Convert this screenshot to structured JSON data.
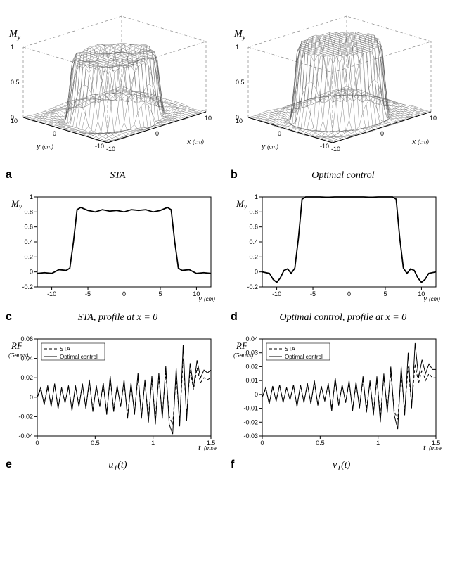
{
  "colors": {
    "background": "#ffffff",
    "line": "#000000",
    "grid": "#999999",
    "mesh": "#555555"
  },
  "fonts": {
    "title_family": "Times New Roman",
    "title_size_pt": 14,
    "letter_size_pt": 16,
    "axis_size_pt": 12,
    "tick_size_pt": 9
  },
  "panel_a": {
    "letter": "a",
    "title": "STA",
    "zlabel": "M",
    "zlabel_sub": "y",
    "xlabel": "y",
    "xunit": "(cm)",
    "ylabel": "x",
    "yunit": "(cm)",
    "range": [
      -10,
      10
    ],
    "zrange": [
      0,
      1
    ],
    "zticks": [
      0,
      0.5,
      1
    ],
    "plateau": 0.82,
    "radius": 7
  },
  "panel_b": {
    "letter": "b",
    "title": "Optimal control",
    "zlabel": "M",
    "zlabel_sub": "y",
    "xlabel": "y",
    "xunit": "(cm)",
    "ylabel": "x",
    "yunit": "(cm)",
    "range": [
      -10,
      10
    ],
    "zrange": [
      0,
      1
    ],
    "zticks": [
      0,
      0.5,
      1
    ],
    "plateau": 1.0,
    "radius": 7
  },
  "panel_c": {
    "letter": "c",
    "title": "STA, profile at x = 0",
    "ylabel": "M",
    "ylabel_sub": "y",
    "xlabel": "y",
    "xunit": "(cm)",
    "xlim": [
      -12,
      12
    ],
    "ylim": [
      -0.2,
      1
    ],
    "xticks": [
      -10,
      -5,
      0,
      5,
      10
    ],
    "yticks": [
      -0.2,
      0,
      0.2,
      0.4,
      0.6,
      0.8,
      1
    ],
    "x": [
      -12,
      -11,
      -10,
      -9,
      -8,
      -7.5,
      -7,
      -6.5,
      -6,
      -5,
      -4,
      -3,
      -2,
      -1,
      0,
      1,
      2,
      3,
      4,
      5,
      6,
      6.5,
      7,
      7.5,
      8,
      9,
      10,
      11,
      12
    ],
    "y": [
      -0.02,
      -0.01,
      -0.02,
      0.03,
      0.02,
      0.05,
      0.4,
      0.83,
      0.86,
      0.82,
      0.8,
      0.83,
      0.81,
      0.82,
      0.8,
      0.83,
      0.82,
      0.83,
      0.8,
      0.82,
      0.86,
      0.83,
      0.4,
      0.05,
      0.02,
      0.03,
      -0.02,
      -0.01,
      -0.02
    ],
    "line_color": "#000000",
    "line_width": 1.8
  },
  "panel_d": {
    "letter": "d",
    "title": "Optimal control, profile at x = 0",
    "ylabel": "M",
    "ylabel_sub": "y",
    "xlabel": "y",
    "xunit": "(cm)",
    "xlim": [
      -12,
      12
    ],
    "ylim": [
      -0.2,
      1
    ],
    "xticks": [
      -10,
      -5,
      0,
      5,
      10
    ],
    "yticks": [
      -0.2,
      0,
      0.2,
      0.4,
      0.6,
      0.8,
      1
    ],
    "x": [
      -12,
      -11,
      -10.5,
      -10,
      -9.5,
      -9,
      -8.5,
      -8,
      -7.5,
      -7,
      -6.5,
      -6,
      -5,
      -4,
      -3,
      -2,
      -1,
      0,
      1,
      2,
      3,
      4,
      5,
      6,
      6.5,
      7,
      7.5,
      8,
      8.5,
      9,
      9.5,
      10,
      10.5,
      11,
      12
    ],
    "y": [
      0.0,
      -0.02,
      -0.1,
      -0.14,
      -0.08,
      0.02,
      0.04,
      -0.02,
      0.05,
      0.45,
      0.97,
      1.0,
      1.0,
      1.0,
      0.995,
      1.0,
      1.0,
      1.0,
      1.0,
      1.0,
      0.995,
      1.0,
      1.0,
      1.0,
      0.97,
      0.45,
      0.05,
      -0.02,
      0.04,
      0.02,
      -0.08,
      -0.14,
      -0.1,
      -0.02,
      0.0
    ],
    "line_color": "#000000",
    "line_width": 1.8
  },
  "panel_e": {
    "letter": "e",
    "title": "u₁(t)",
    "ylabel": "RF",
    "yunit": "(Gauss)",
    "xlabel": "t",
    "xunit": "(msec)",
    "xlim": [
      0,
      1.5
    ],
    "ylim": [
      -0.04,
      0.06
    ],
    "xticks": [
      0,
      0.5,
      1,
      1.5
    ],
    "yticks": [
      -0.04,
      -0.02,
      0,
      0.02,
      0.04,
      0.06
    ],
    "legend": [
      "STA",
      "Optimal control"
    ],
    "legend_styles": [
      "dashed",
      "solid"
    ],
    "series": [
      {
        "name": "STA",
        "dash": "4,3",
        "color": "#000000",
        "width": 1.0,
        "t": [
          0,
          0.03,
          0.06,
          0.09,
          0.12,
          0.15,
          0.18,
          0.21,
          0.24,
          0.27,
          0.3,
          0.33,
          0.36,
          0.39,
          0.42,
          0.45,
          0.48,
          0.51,
          0.54,
          0.57,
          0.6,
          0.63,
          0.66,
          0.69,
          0.72,
          0.75,
          0.78,
          0.81,
          0.84,
          0.87,
          0.9,
          0.93,
          0.96,
          0.99,
          1.02,
          1.05,
          1.08,
          1.11,
          1.14,
          1.17,
          1.2,
          1.23,
          1.26,
          1.29,
          1.32,
          1.35,
          1.38,
          1.41,
          1.44,
          1.47,
          1.5
        ],
        "y": [
          0,
          0.008,
          -0.006,
          0.01,
          -0.008,
          0.012,
          -0.01,
          0.008,
          -0.005,
          0.01,
          -0.012,
          0.01,
          -0.008,
          0.012,
          -0.01,
          0.015,
          -0.012,
          0.01,
          -0.008,
          0.012,
          -0.015,
          0.018,
          -0.012,
          0.01,
          -0.008,
          0.015,
          -0.018,
          0.012,
          -0.015,
          0.02,
          -0.018,
          0.015,
          -0.02,
          0.018,
          -0.022,
          0.02,
          -0.018,
          0.025,
          -0.02,
          -0.028,
          0.022,
          -0.025,
          0.04,
          -0.018,
          0.028,
          0.008,
          0.03,
          0.015,
          0.02,
          0.018,
          0.02
        ]
      },
      {
        "name": "Optimal control",
        "dash": "none",
        "color": "#000000",
        "width": 1.0,
        "t": [
          0,
          0.03,
          0.06,
          0.09,
          0.12,
          0.15,
          0.18,
          0.21,
          0.24,
          0.27,
          0.3,
          0.33,
          0.36,
          0.39,
          0.42,
          0.45,
          0.48,
          0.51,
          0.54,
          0.57,
          0.6,
          0.63,
          0.66,
          0.69,
          0.72,
          0.75,
          0.78,
          0.81,
          0.84,
          0.87,
          0.9,
          0.93,
          0.96,
          0.99,
          1.02,
          1.05,
          1.08,
          1.11,
          1.14,
          1.17,
          1.2,
          1.23,
          1.26,
          1.29,
          1.32,
          1.35,
          1.38,
          1.41,
          1.44,
          1.47,
          1.5
        ],
        "y": [
          0,
          0.01,
          -0.008,
          0.012,
          -0.01,
          0.014,
          -0.012,
          0.01,
          -0.006,
          0.012,
          -0.014,
          0.012,
          -0.01,
          0.014,
          -0.012,
          0.018,
          -0.015,
          0.012,
          -0.01,
          0.015,
          -0.018,
          0.022,
          -0.015,
          0.012,
          -0.01,
          0.018,
          -0.022,
          0.015,
          -0.018,
          0.025,
          -0.022,
          0.018,
          -0.026,
          0.022,
          -0.028,
          0.025,
          -0.022,
          0.032,
          -0.028,
          -0.038,
          0.03,
          -0.03,
          0.054,
          -0.024,
          0.035,
          0.01,
          0.038,
          0.02,
          0.028,
          0.025,
          0.028
        ]
      }
    ]
  },
  "panel_f": {
    "letter": "f",
    "title": "v₁(t)",
    "ylabel": "RF",
    "yunit": "(Gauss)",
    "xlabel": "t",
    "xunit": "(msec)",
    "xlim": [
      0,
      1.5
    ],
    "ylim": [
      -0.03,
      0.04
    ],
    "xticks": [
      0,
      0.5,
      1,
      1.5
    ],
    "yticks": [
      -0.03,
      -0.02,
      -0.01,
      0,
      0.01,
      0.02,
      0.03,
      0.04
    ],
    "legend": [
      "STA",
      "Optimal control"
    ],
    "legend_styles": [
      "dashed",
      "solid"
    ],
    "series": [
      {
        "name": "STA",
        "dash": "4,3",
        "color": "#000000",
        "width": 1.0,
        "t": [
          0,
          0.03,
          0.06,
          0.09,
          0.12,
          0.15,
          0.18,
          0.21,
          0.24,
          0.27,
          0.3,
          0.33,
          0.36,
          0.39,
          0.42,
          0.45,
          0.48,
          0.51,
          0.54,
          0.57,
          0.6,
          0.63,
          0.66,
          0.69,
          0.72,
          0.75,
          0.78,
          0.81,
          0.84,
          0.87,
          0.9,
          0.93,
          0.96,
          0.99,
          1.02,
          1.05,
          1.08,
          1.11,
          1.14,
          1.17,
          1.2,
          1.23,
          1.26,
          1.29,
          1.32,
          1.35,
          1.38,
          1.41,
          1.44,
          1.47,
          1.5
        ],
        "y": [
          -0.002,
          0.004,
          -0.006,
          0.005,
          -0.004,
          0.006,
          -0.005,
          0.004,
          -0.003,
          0.006,
          -0.008,
          0.006,
          -0.005,
          0.007,
          -0.006,
          0.008,
          -0.007,
          0.005,
          -0.004,
          0.007,
          -0.01,
          0.01,
          -0.007,
          0.006,
          -0.005,
          0.008,
          -0.01,
          0.007,
          -0.008,
          0.01,
          -0.01,
          0.008,
          -0.012,
          0.01,
          -0.015,
          0.012,
          -0.01,
          0.015,
          -0.012,
          -0.018,
          0.015,
          -0.012,
          0.02,
          -0.008,
          0.022,
          0.008,
          0.018,
          0.01,
          0.015,
          0.012,
          0.012
        ]
      },
      {
        "name": "Optimal control",
        "dash": "none",
        "color": "#000000",
        "width": 1.0,
        "t": [
          0,
          0.03,
          0.06,
          0.09,
          0.12,
          0.15,
          0.18,
          0.21,
          0.24,
          0.27,
          0.3,
          0.33,
          0.36,
          0.39,
          0.42,
          0.45,
          0.48,
          0.51,
          0.54,
          0.57,
          0.6,
          0.63,
          0.66,
          0.69,
          0.72,
          0.75,
          0.78,
          0.81,
          0.84,
          0.87,
          0.9,
          0.93,
          0.96,
          0.99,
          1.02,
          1.05,
          1.08,
          1.11,
          1.14,
          1.17,
          1.2,
          1.23,
          1.26,
          1.29,
          1.32,
          1.35,
          1.38,
          1.41,
          1.44,
          1.47,
          1.5
        ],
        "y": [
          -0.002,
          0.005,
          -0.007,
          0.006,
          -0.005,
          0.007,
          -0.006,
          0.005,
          -0.004,
          0.007,
          -0.009,
          0.007,
          -0.006,
          0.008,
          -0.007,
          0.01,
          -0.008,
          0.006,
          -0.005,
          0.008,
          -0.012,
          0.012,
          -0.008,
          0.007,
          -0.006,
          0.01,
          -0.012,
          0.009,
          -0.01,
          0.013,
          -0.013,
          0.01,
          -0.015,
          0.013,
          -0.02,
          0.015,
          -0.013,
          0.02,
          -0.015,
          -0.025,
          0.02,
          -0.015,
          0.03,
          -0.01,
          0.037,
          0.012,
          0.025,
          0.015,
          0.022,
          0.018,
          0.018
        ]
      }
    ]
  }
}
